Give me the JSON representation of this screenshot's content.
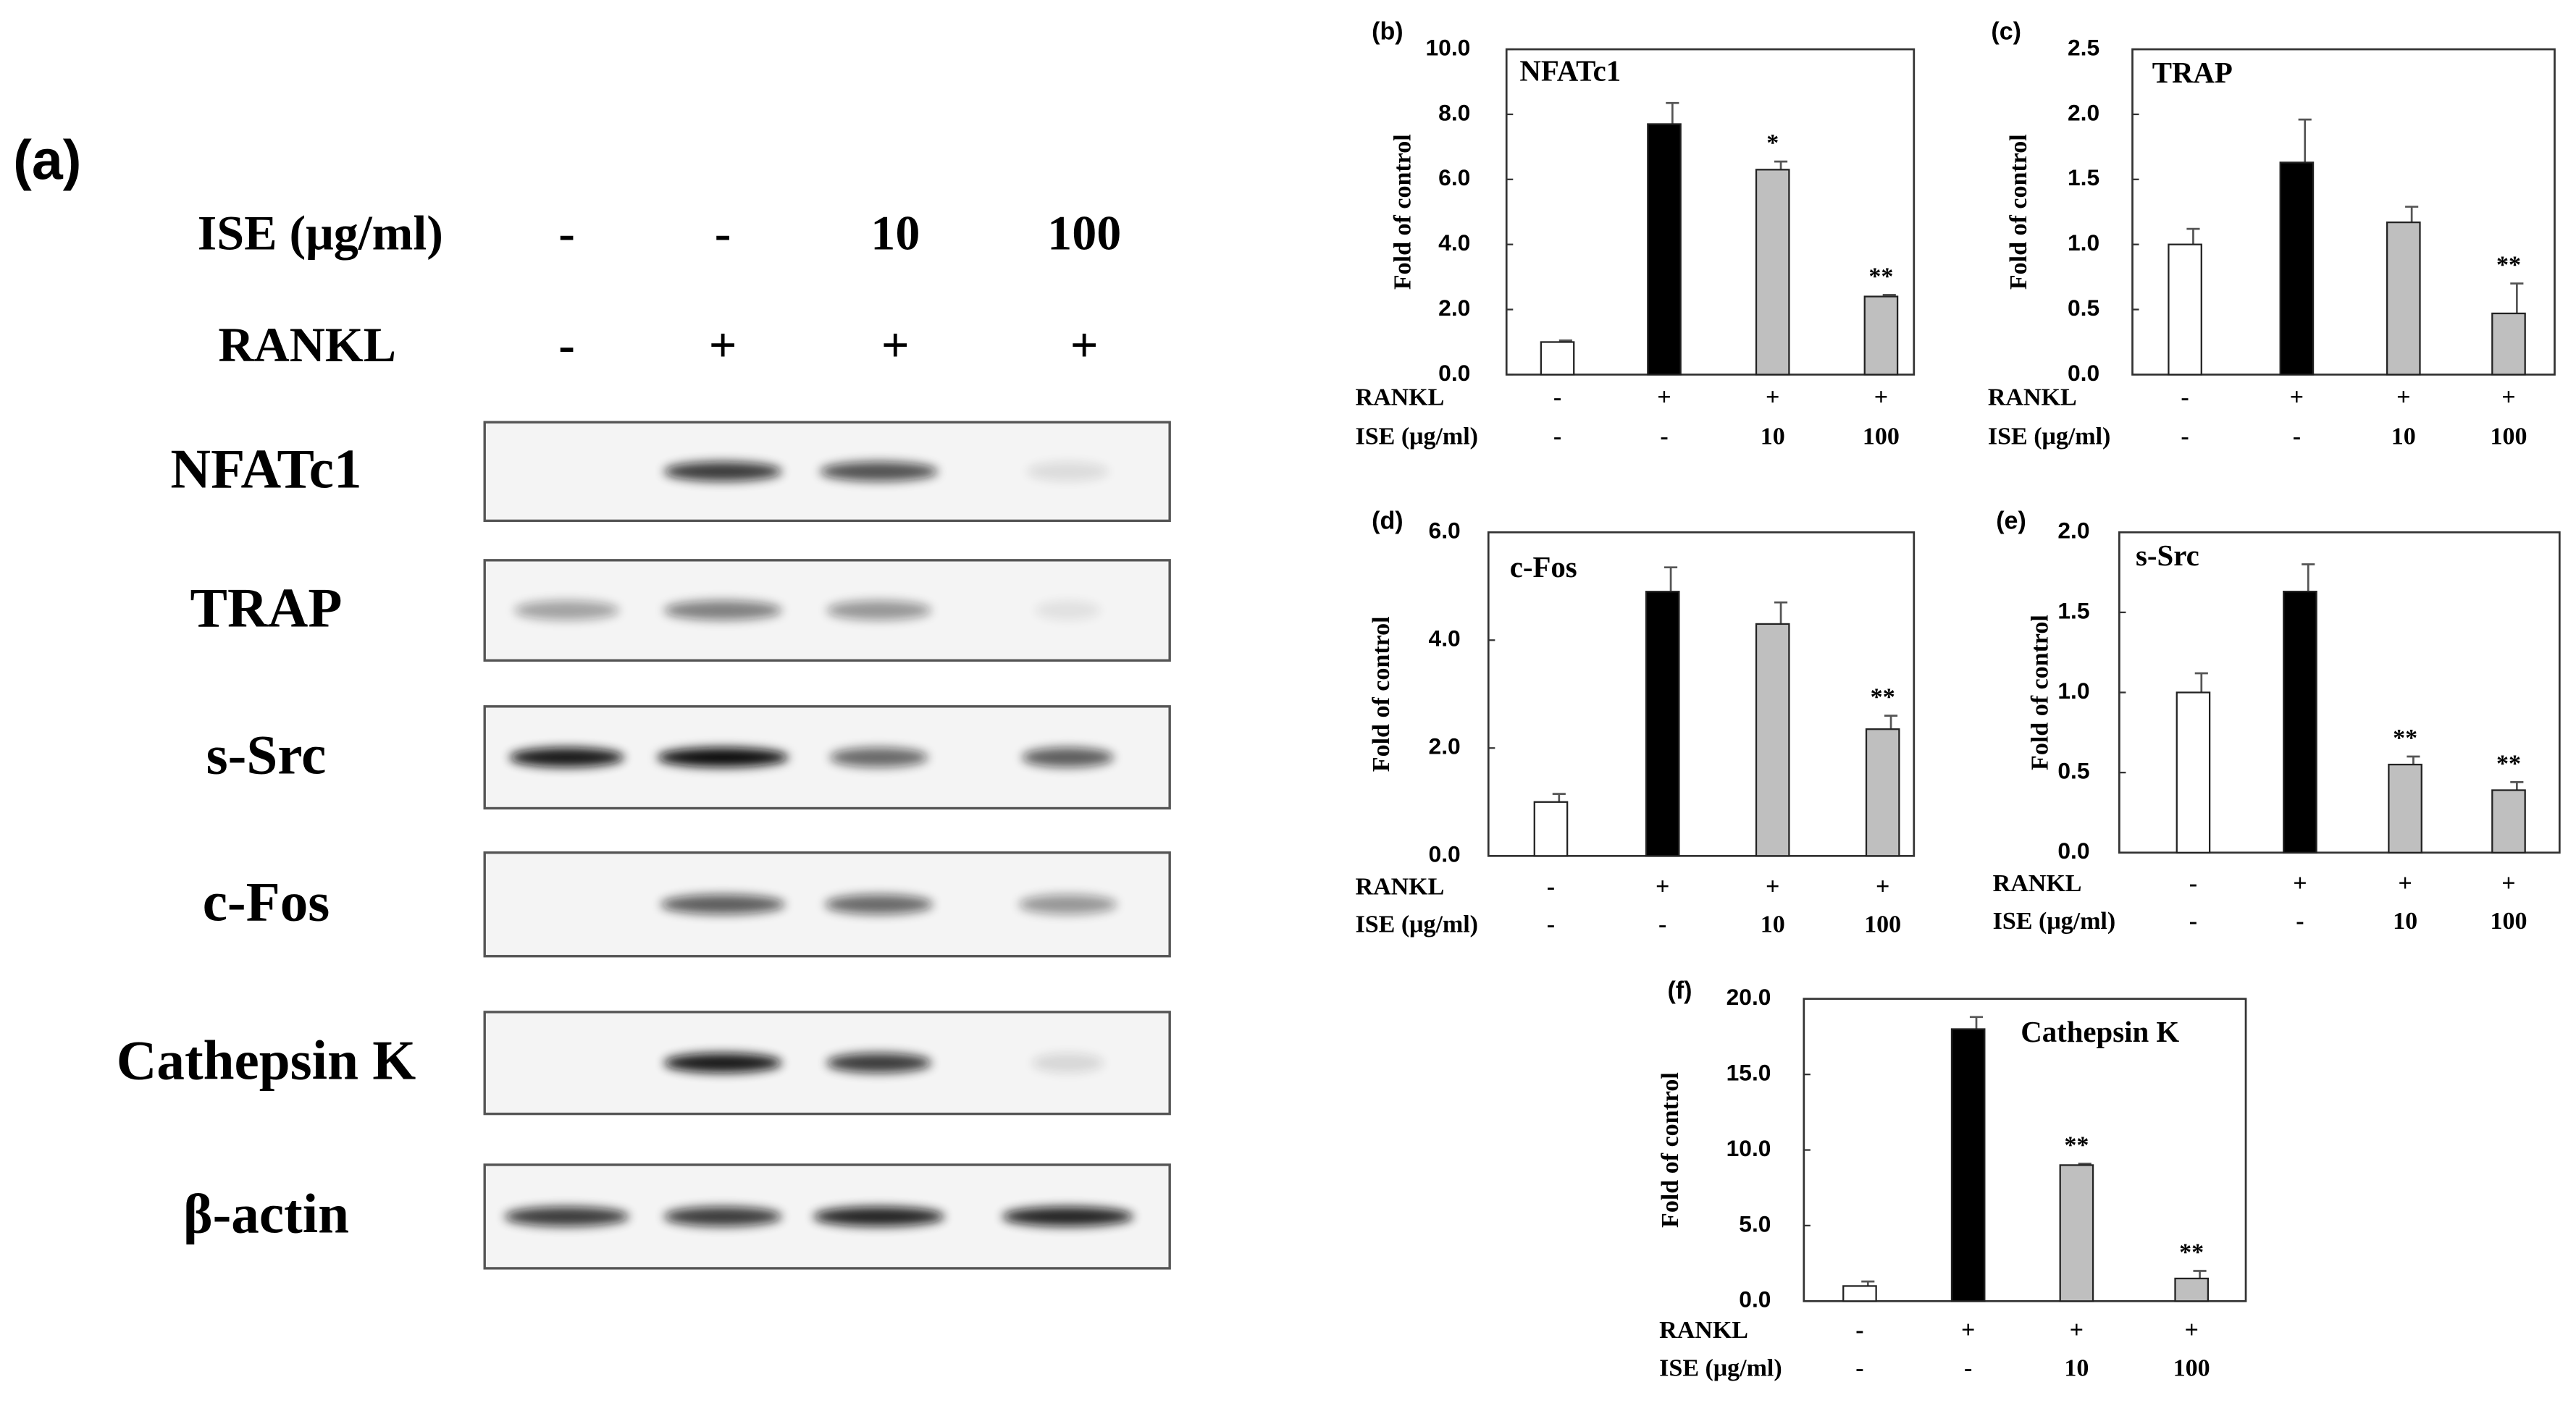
{
  "blot": {
    "label": "(a)",
    "treatments": [
      {
        "label": "ISE (μg/ml)",
        "values": [
          "-",
          "-",
          "10",
          "100"
        ]
      },
      {
        "label": "RANKL",
        "values": [
          "-",
          "+",
          "+",
          "+"
        ]
      }
    ],
    "proteins": [
      "NFATc1",
      "TRAP",
      "s-Src",
      "c-Fos",
      "Cathepsin K",
      "β-actin"
    ]
  },
  "chart_data": [
    {
      "type": "bar",
      "panel": "(b)",
      "title": "NFATc1",
      "ylabel": "Fold of control",
      "rows": [
        {
          "label": "RANKL",
          "values": [
            "-",
            "+",
            "+",
            "+"
          ]
        },
        {
          "label": "ISE (μg/ml)",
          "values": [
            "-",
            "-",
            "10",
            "100"
          ]
        }
      ],
      "values": [
        1.0,
        7.7,
        6.3,
        2.4
      ],
      "errors": [
        0.05,
        0.65,
        0.25,
        0.05
      ],
      "annotations": [
        null,
        null,
        "*",
        "**"
      ],
      "colors": [
        "#ffffff",
        "#000000",
        "#bfbfbf",
        "#bfbfbf"
      ],
      "ylim": [
        0,
        10
      ],
      "yticks": [
        {
          "value": 0,
          "label": "0.0"
        },
        {
          "value": 2,
          "label": "2.0"
        },
        {
          "value": 4,
          "label": "4.0"
        },
        {
          "value": 6,
          "label": "6.0"
        },
        {
          "value": 8,
          "label": "8.0"
        },
        {
          "value": 10,
          "label": "10.0"
        }
      ]
    },
    {
      "type": "bar",
      "panel": "(c)",
      "title": "TRAP",
      "ylabel": "Fold of control",
      "rows": [
        {
          "label": "RANKL",
          "values": [
            "-",
            "+",
            "+",
            "+"
          ]
        },
        {
          "label": "ISE (μg/ml)",
          "values": [
            "-",
            "-",
            "10",
            "100"
          ]
        }
      ],
      "values": [
        1.0,
        1.63,
        1.17,
        0.47
      ],
      "errors": [
        0.12,
        0.33,
        0.12,
        0.23
      ],
      "annotations": [
        null,
        null,
        null,
        "**"
      ],
      "colors": [
        "#ffffff",
        "#000000",
        "#bfbfbf",
        "#bfbfbf"
      ],
      "ylim": [
        0,
        2.5
      ],
      "yticks": [
        {
          "value": 0,
          "label": "0.0"
        },
        0.5,
        {
          "value": 1,
          "label": "1.0"
        },
        1.5,
        {
          "value": 2,
          "label": "2.0"
        },
        2.5
      ]
    },
    {
      "type": "bar",
      "panel": "(d)",
      "title": "c-Fos",
      "ylabel": "Fold of control",
      "rows": [
        {
          "label": "RANKL",
          "values": [
            "-",
            "+",
            "+",
            "+"
          ]
        },
        {
          "label": "ISE (μg/ml)",
          "values": [
            "-",
            "-",
            "10",
            "100"
          ]
        }
      ],
      "values": [
        1.0,
        4.9,
        4.3,
        2.35
      ],
      "errors": [
        0.15,
        0.45,
        0.4,
        0.25
      ],
      "annotations": [
        null,
        null,
        null,
        "**"
      ],
      "colors": [
        "#ffffff",
        "#000000",
        "#bfbfbf",
        "#bfbfbf"
      ],
      "ylim": [
        0,
        6
      ],
      "yticks": [
        {
          "value": 0,
          "label": "0.0"
        },
        {
          "value": 2,
          "label": "2.0"
        },
        {
          "value": 4,
          "label": "4.0"
        },
        {
          "value": 6,
          "label": "6.0"
        }
      ]
    },
    {
      "type": "bar",
      "panel": "(e)",
      "title": "s-Src",
      "ylabel": "Fold of control",
      "rows": [
        {
          "label": "RANKL",
          "values": [
            "-",
            "+",
            "+",
            "+"
          ]
        },
        {
          "label": "ISE (μg/ml)",
          "values": [
            "-",
            "-",
            "10",
            "100"
          ]
        }
      ],
      "values": [
        1.0,
        1.63,
        0.55,
        0.39
      ],
      "errors": [
        0.12,
        0.17,
        0.05,
        0.05
      ],
      "annotations": [
        null,
        null,
        "**",
        "**"
      ],
      "colors": [
        "#ffffff",
        "#000000",
        "#bfbfbf",
        "#bfbfbf"
      ],
      "ylim": [
        0,
        2
      ],
      "yticks": [
        {
          "value": 0,
          "label": "0.0"
        },
        0.5,
        {
          "value": 1,
          "label": "1.0"
        },
        1.5,
        {
          "value": 2,
          "label": "2.0"
        }
      ]
    },
    {
      "type": "bar",
      "panel": "(f)",
      "title": "Cathepsin K",
      "ylabel": "Fold of control",
      "rows": [
        {
          "label": "RANKL",
          "values": [
            "-",
            "+",
            "+",
            "+"
          ]
        },
        {
          "label": "ISE (μg/ml)",
          "values": [
            "-",
            "-",
            "10",
            "100"
          ]
        }
      ],
      "values": [
        1.0,
        18.0,
        9.0,
        1.5
      ],
      "errors": [
        0.3,
        0.8,
        0.1,
        0.5
      ],
      "annotations": [
        null,
        null,
        "**",
        "**"
      ],
      "colors": [
        "#ffffff",
        "#000000",
        "#bfbfbf",
        "#bfbfbf"
      ],
      "ylim": [
        0,
        20
      ],
      "yticks": [
        {
          "value": 0,
          "label": "0.0"
        },
        {
          "value": 5,
          "label": "5.0"
        },
        {
          "value": 10,
          "label": "10.0"
        },
        {
          "value": 15,
          "label": "15.0"
        },
        {
          "value": 20,
          "label": "20.0"
        }
      ]
    }
  ]
}
